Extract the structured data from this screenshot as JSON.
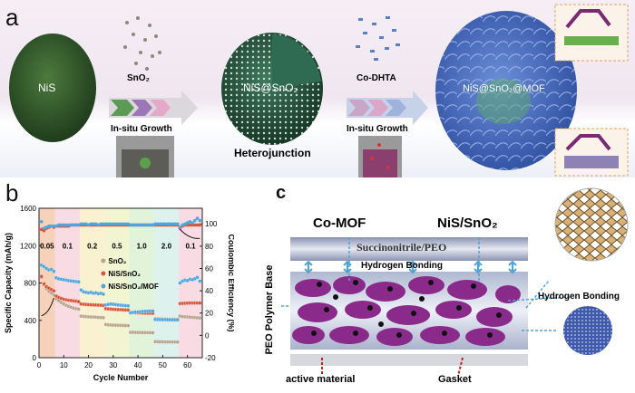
{
  "panel_a": {
    "letter": "a",
    "nis_label": "NiS",
    "step1_reagent": "SnO₂",
    "step1_process": "In-situ Growth",
    "core_shell_label": "NiS@SnO₂",
    "heterojunction_label": "Heterojunction",
    "step2_reagent": "Co-DHTA",
    "step2_process": "In-situ Growth",
    "final_label": "NiS@SnO₂@MOF"
  },
  "panel_b": {
    "letter": "b"
  },
  "panel_c": {
    "letter": "c",
    "co_mof_label": "Co-MOF",
    "nis_sno2_label": "NiS/SnO₂",
    "top_layer_label": "Succinonitrile/PEO",
    "hbond_label_center": "Hydrogen Bonding",
    "hbond_label_right": "Hydrogen Bonding",
    "side_label": "PEO Polymer Base",
    "active_material_label": "active material",
    "gasket_label": "Gasket"
  },
  "chart_data": {
    "type": "scatter",
    "title": "",
    "xlabel": "Cycle Number",
    "ylabel": "Specific Capacity (mAh/g)",
    "ylabel_right": "Coulombic Efficiency (%)",
    "xlim": [
      0,
      66
    ],
    "ylim": [
      0,
      1600
    ],
    "ylim_right": [
      -20,
      114
    ],
    "xticks": [
      "0",
      "10",
      "20",
      "30",
      "40",
      "50",
      "60"
    ],
    "yticks": [
      "0",
      "400",
      "800",
      "1200",
      "1600"
    ],
    "yticks_right": [
      "-20",
      "0",
      "20",
      "40",
      "60",
      "80",
      "100"
    ],
    "rate_labels": [
      "0.05",
      "0.1",
      "0.2",
      "0.5",
      "1.0",
      "2.0",
      "0.1"
    ],
    "rate_bands": [
      [
        0,
        6.5
      ],
      [
        6.5,
        16.5
      ],
      [
        16.5,
        26.5
      ],
      [
        26.5,
        36.5
      ],
      [
        36.5,
        46.5
      ],
      [
        46.5,
        56.5
      ],
      [
        56.5,
        66
      ]
    ],
    "band_colors": [
      "#f3c7a8",
      "#f8d3dc",
      "#f9edc4",
      "#eef3c6",
      "#d9f0cf",
      "#d4eee9",
      "#f8d3dc"
    ],
    "legend_position": "center",
    "series": [
      {
        "name": "SnO₂",
        "color": "#b8a48c",
        "values": [
          860,
          780,
          740,
          710,
          690,
          670,
          630,
          610,
          590,
          575,
          560,
          550,
          540,
          530,
          525,
          520,
          445,
          442,
          440,
          438,
          436,
          435,
          434,
          432,
          430,
          428,
          355,
          352,
          350,
          349,
          348,
          347,
          346,
          345,
          344,
          343,
          272,
          271,
          270,
          270,
          269,
          269,
          268,
          268,
          268,
          267,
          172,
          171,
          170,
          170,
          169,
          169,
          168,
          168,
          168,
          167,
          445,
          440,
          438,
          436,
          434,
          432,
          430,
          428,
          425
        ]
      },
      {
        "name": "NiS/SnO₂",
        "color": "#d9553a",
        "values": [
          870,
          790,
          760,
          745,
          730,
          715,
          660,
          645,
          635,
          625,
          620,
          615,
          612,
          608,
          605,
          600,
          575,
          572,
          570,
          568,
          566,
          565,
          564,
          563,
          562,
          560,
          525,
          522,
          520,
          518,
          516,
          515,
          514,
          512,
          511,
          510,
          485,
          482,
          480,
          480,
          479,
          478,
          477,
          476,
          476,
          475,
          415,
          414,
          413,
          412,
          412,
          411,
          410,
          410,
          410,
          410,
          580,
          582,
          583,
          584,
          585,
          585,
          585,
          585,
          585
        ]
      },
      {
        "name": "NiS/SnO₂/MOF",
        "color": "#4fa6dc",
        "values": [
          990,
          975,
          955,
          940,
          945,
          925,
          855,
          845,
          840,
          835,
          830,
          825,
          822,
          818,
          815,
          812,
          725,
          705,
          700,
          695,
          700,
          690,
          695,
          685,
          690,
          680,
          565,
          570,
          575,
          572,
          568,
          565,
          562,
          560,
          558,
          555,
          480,
          485,
          488,
          490,
          492,
          495,
          497,
          498,
          500,
          500,
          410,
          408,
          408,
          407,
          407,
          406,
          406,
          405,
          405,
          405,
          800,
          820,
          830,
          825,
          840,
          835,
          845,
          860,
          820
        ]
      }
    ],
    "efficiency_series": [
      {
        "name": "NiS/SnO₂ CE",
        "color": "#d9553a",
        "values": [
          95,
          94,
          96,
          97,
          98,
          97,
          98,
          98,
          98,
          98,
          98,
          98,
          99,
          99,
          99,
          99,
          99,
          99,
          99,
          99,
          99,
          99,
          99,
          99,
          99,
          99,
          99,
          99,
          99,
          99,
          99,
          99,
          99,
          99,
          99,
          99,
          99,
          99,
          99,
          99,
          99,
          99,
          99,
          99,
          99,
          99,
          99,
          99,
          99,
          99,
          99,
          99,
          99,
          99,
          99,
          99,
          96,
          98,
          99,
          99,
          99,
          99,
          99,
          99,
          99
        ]
      },
      {
        "name": "NiS/SnO₂/MOF CE",
        "color": "#4fa6dc",
        "values": [
          102,
          96,
          97,
          98,
          98,
          98,
          98,
          99,
          99,
          99,
          99,
          99,
          99,
          99,
          99,
          99,
          100,
          100,
          100,
          99,
          100,
          100,
          100,
          99,
          100,
          100,
          100,
          100,
          100,
          100,
          100,
          100,
          100,
          100,
          100,
          100,
          99,
          99,
          99,
          99,
          99,
          99,
          99,
          99,
          99,
          99,
          100,
          100,
          100,
          100,
          100,
          100,
          100,
          100,
          100,
          100,
          97,
          99,
          100,
          101,
          102,
          101,
          103,
          105,
          103
        ]
      }
    ]
  }
}
